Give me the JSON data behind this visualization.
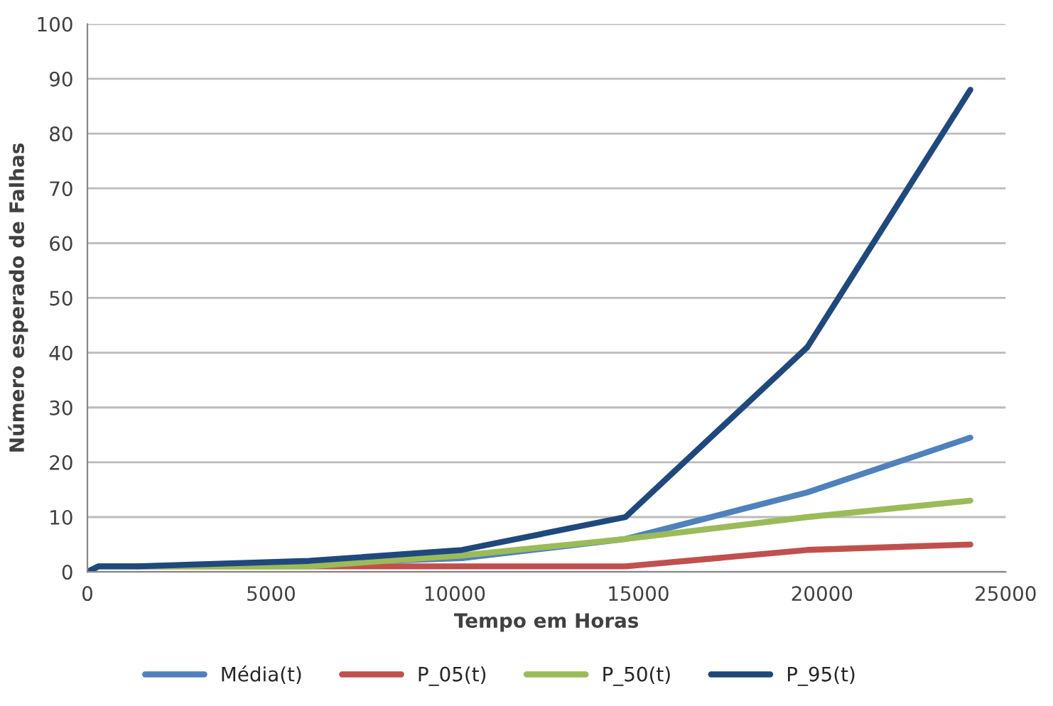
{
  "chart_data": {
    "type": "line",
    "xlabel": "Tempo em Horas",
    "ylabel": "Número esperado de Falhas",
    "x": [
      0,
      300,
      1330,
      6030,
      10200,
      14650,
      19600,
      24040
    ],
    "series": [
      {
        "name": "Média(t)",
        "color": "#4f81bd",
        "values": [
          0,
          1,
          1,
          1.5,
          2.5,
          6,
          14.5,
          24.5
        ]
      },
      {
        "name": "P_05(t)",
        "color": "#c0504d",
        "values": [
          null,
          null,
          1,
          1,
          1,
          1,
          4,
          5
        ]
      },
      {
        "name": "P_50(t)",
        "color": "#9bbb59",
        "values": [
          0,
          1,
          1,
          1,
          3,
          6,
          10,
          13
        ]
      },
      {
        "name": "P_95(t)",
        "color": "#1f497d",
        "values": [
          0,
          1,
          1,
          2,
          4,
          10,
          41,
          88
        ]
      }
    ],
    "xlim": [
      0,
      25000
    ],
    "xticks": [
      0,
      5000,
      10000,
      15000,
      20000,
      25000
    ],
    "ylim": [
      0,
      100
    ],
    "yticks": [
      0,
      10,
      20,
      30,
      40,
      50,
      60,
      70,
      80,
      90,
      100
    ],
    "grid": "y",
    "legend": "bottom",
    "marker": "none",
    "line_style": "solid"
  }
}
